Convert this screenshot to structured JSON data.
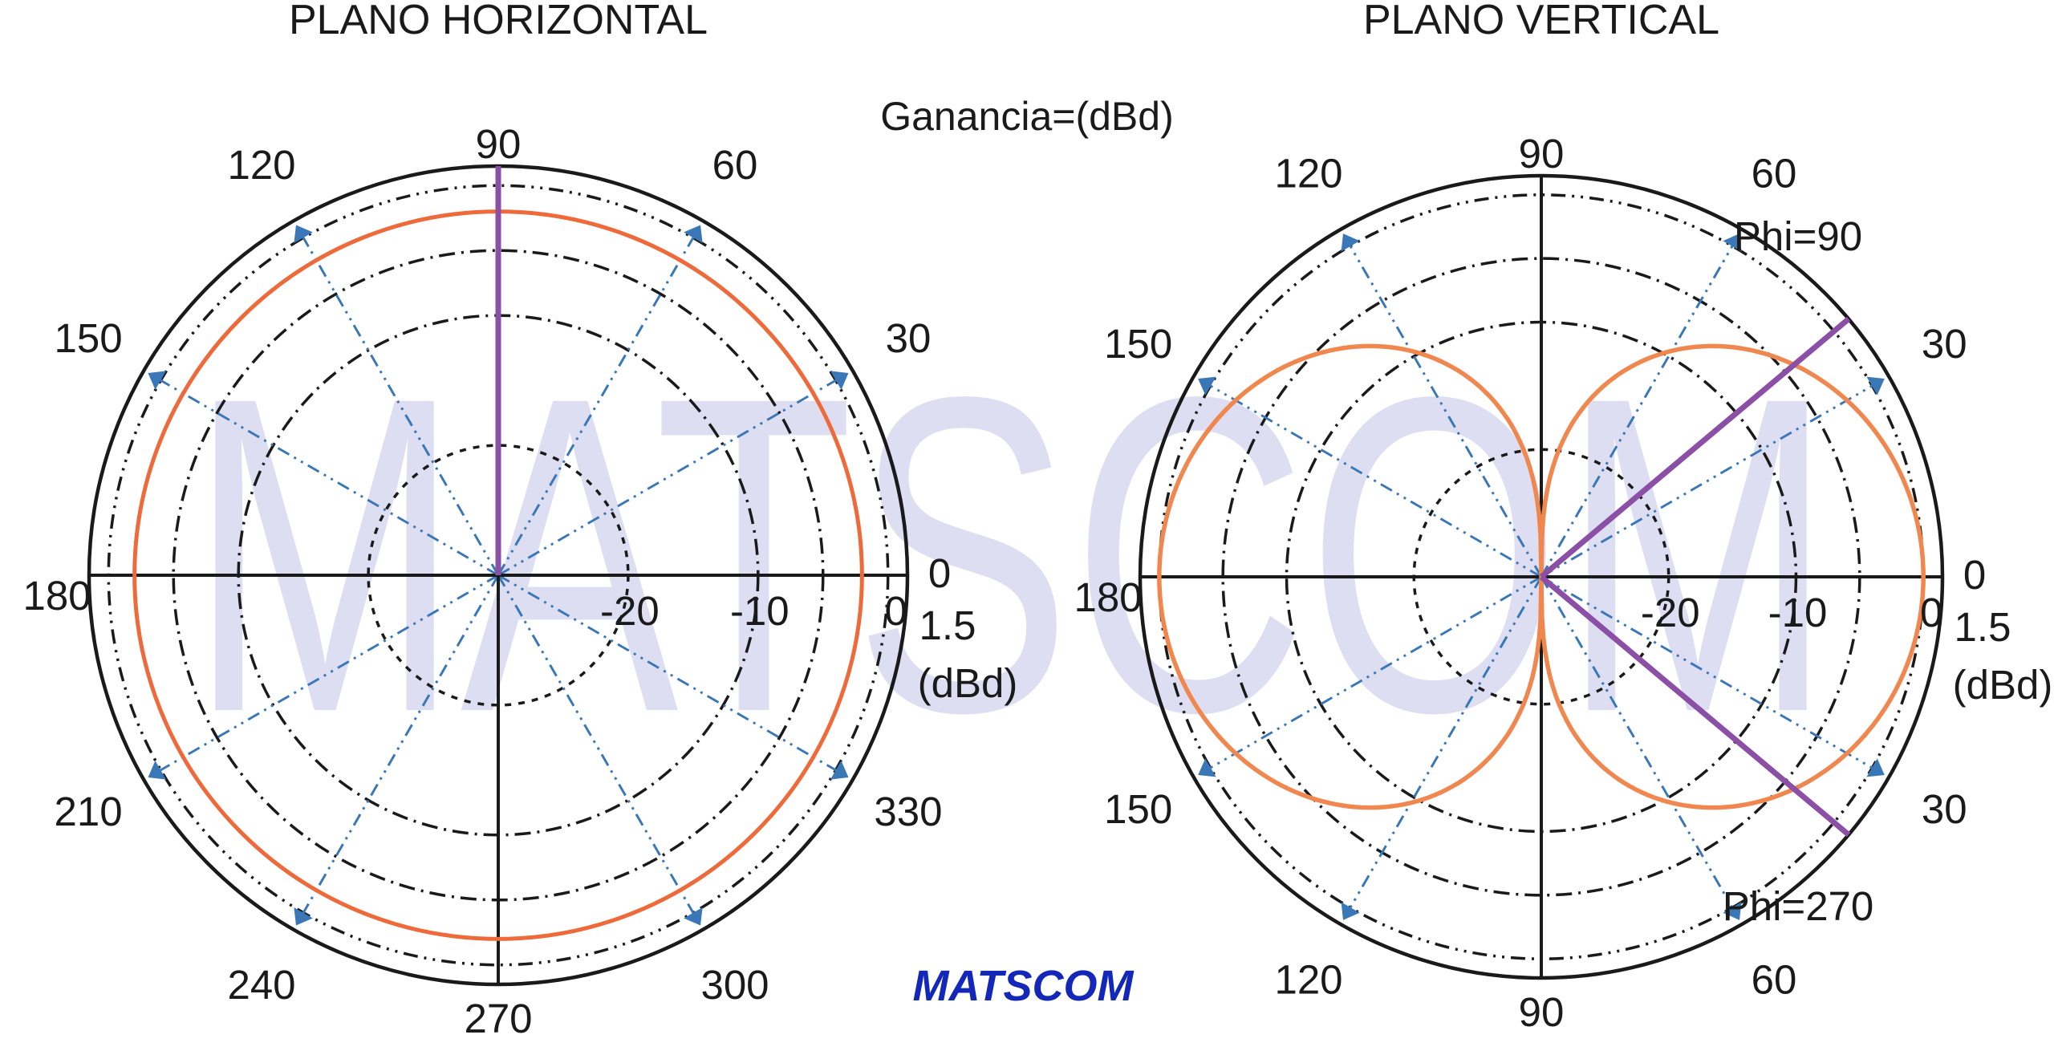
{
  "watermark": "MATSCOM",
  "brand": "MATSCOM",
  "brand_color": "#1327b8",
  "gain_label": "Ganancia=(dBd)",
  "colors": {
    "pattern": "#ee6a3a",
    "pattern_vertical": "#f0874e",
    "beam": "#8b4fa6",
    "spoke": "#3a77b6",
    "axis": "#1a1a1a",
    "watermark": "#c9caec"
  },
  "chart_data": [
    {
      "type": "polar",
      "title": "PLANO HORIZONTAL",
      "angle_labels": [
        {
          "angle": 0,
          "label": "0"
        },
        {
          "angle": 30,
          "label": "30"
        },
        {
          "angle": 60,
          "label": "60"
        },
        {
          "angle": 90,
          "label": "90"
        },
        {
          "angle": 120,
          "label": "120"
        },
        {
          "angle": 150,
          "label": "150"
        },
        {
          "angle": 180,
          "label": "180"
        },
        {
          "angle": 210,
          "label": "210"
        },
        {
          "angle": 240,
          "label": "240"
        },
        {
          "angle": 270,
          "label": "270"
        },
        {
          "angle": 300,
          "label": "300"
        },
        {
          "angle": 330,
          "label": "330"
        }
      ],
      "radial_labels": [
        "-20",
        "-10",
        "0"
      ],
      "radial_range_db": [
        -30,
        1.5
      ],
      "outer_label": "1.5",
      "unit_label": "(dBd)",
      "rings_db": [
        -20,
        -10,
        0
      ],
      "pattern": {
        "shape": "omnidirectional",
        "gain_db": 1.5,
        "plotted_radius_db": -2
      },
      "beam_angles": [
        90
      ],
      "beam_labels": []
    },
    {
      "type": "polar",
      "title": "PLANO VERTICAL",
      "angle_labels": [
        {
          "angle": 0,
          "label": "0"
        },
        {
          "angle": 30,
          "label": "30"
        },
        {
          "angle": 60,
          "label": "60"
        },
        {
          "angle": 90,
          "label": "90"
        },
        {
          "angle": 120,
          "label": "120"
        },
        {
          "angle": 150,
          "label": "150"
        },
        {
          "angle": 180,
          "label": "180"
        },
        {
          "angle": 210,
          "label": "150"
        },
        {
          "angle": 240,
          "label": "120"
        },
        {
          "angle": 270,
          "label": "90"
        },
        {
          "angle": 300,
          "label": "60"
        },
        {
          "angle": 330,
          "label": "30"
        }
      ],
      "radial_labels": [
        "-20",
        "-10",
        "0"
      ],
      "radial_range_db": [
        -30,
        1.5
      ],
      "outer_label": "1.5",
      "unit_label": "(dBd)",
      "rings_db": [
        -20,
        -10,
        0
      ],
      "pattern": {
        "shape": "dipole-figure-eight",
        "gain_db": 1.5,
        "null_angles": [
          90,
          270
        ],
        "peak_db": 0
      },
      "beam_angles": [
        40,
        -40
      ],
      "beam_labels": [
        {
          "angle": 40,
          "label": "Phi=90"
        },
        {
          "angle": -40,
          "label": "Phi=270"
        }
      ]
    }
  ]
}
